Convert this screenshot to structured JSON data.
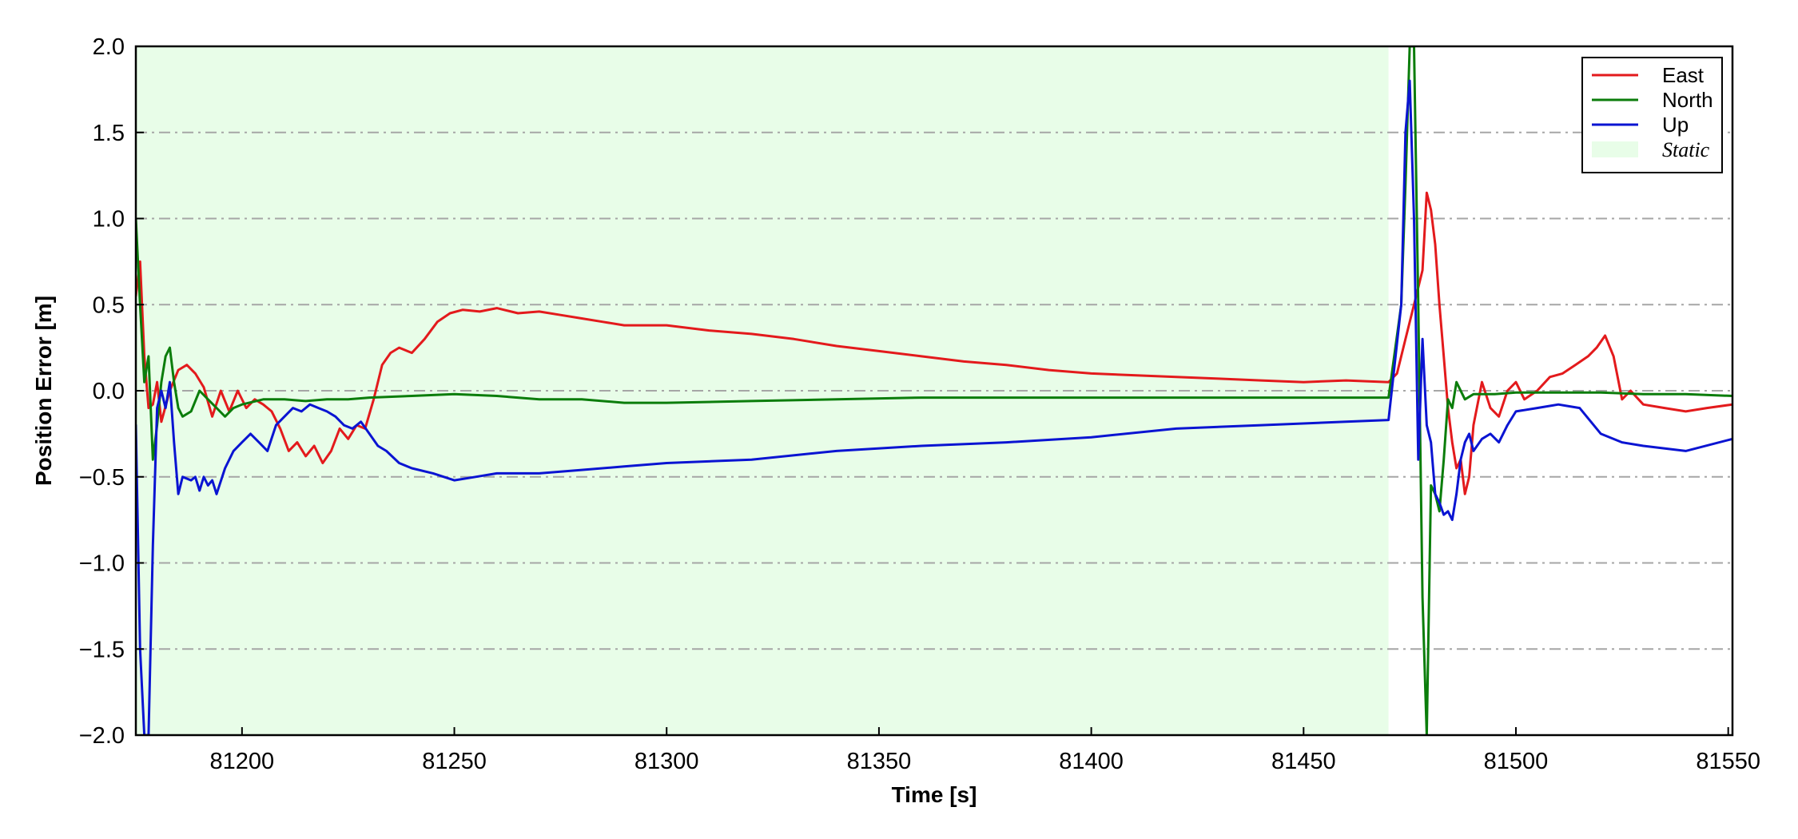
{
  "chart_data": {
    "type": "line",
    "title": "",
    "xlabel": "Time [s]",
    "ylabel": "Position Error [m]",
    "xlim": [
      81175,
      81551
    ],
    "ylim": [
      -2.0,
      2.0
    ],
    "xticks": [
      81200,
      81250,
      81300,
      81350,
      81400,
      81450,
      81500,
      81550
    ],
    "xtick_labels": [
      "81200",
      "81250",
      "81300",
      "81350",
      "81400",
      "81450",
      "81500",
      "81550"
    ],
    "yticks": [
      -2.0,
      -1.5,
      -1.0,
      -0.5,
      0.0,
      0.5,
      1.0,
      1.5,
      2.0
    ],
    "ytick_labels": [
      "−2.0",
      "−1.5",
      "−1.0",
      "−0.5",
      "0.0",
      "0.5",
      "1.0",
      "1.5",
      "2.0"
    ],
    "grid": {
      "axis": "y",
      "style": "dash-dot",
      "color": "#a6a6a6"
    },
    "legend_position": "top-right",
    "shaded_region": {
      "name": "Static",
      "x_start": 81175,
      "x_end": 81470,
      "color": "#e8fde8"
    },
    "series": [
      {
        "name": "East",
        "color": "#e31a1c",
        "x": [
          81175,
          81176,
          81177,
          81178,
          81179,
          81180,
          81181,
          81183,
          81185,
          81187,
          81189,
          81191,
          81193,
          81195,
          81197,
          81199,
          81201,
          81203,
          81205,
          81207,
          81209,
          81211,
          81213,
          81215,
          81217,
          81219,
          81221,
          81223,
          81225,
          81227,
          81229,
          81231,
          81233,
          81235,
          81237,
          81240,
          81243,
          81246,
          81249,
          81252,
          81256,
          81260,
          81265,
          81270,
          81275,
          81280,
          81285,
          81290,
          81300,
          81310,
          81320,
          81330,
          81340,
          81350,
          81360,
          81370,
          81380,
          81390,
          81400,
          81410,
          81420,
          81430,
          81440,
          81450,
          81460,
          81470,
          81472,
          81474,
          81476,
          81478,
          81479,
          81480,
          81481,
          81482,
          81483,
          81484,
          81485,
          81486,
          81487,
          81488,
          81489,
          81490,
          81492,
          81494,
          81496,
          81498,
          81500,
          81502,
          81505,
          81508,
          81511,
          81514,
          81517,
          81519,
          81521,
          81523,
          81525,
          81527,
          81530,
          81535,
          81540,
          81545,
          81551
        ],
        "values": [
          0.55,
          0.75,
          0.2,
          -0.1,
          -0.08,
          0.05,
          -0.18,
          0.0,
          0.12,
          0.15,
          0.1,
          0.02,
          -0.15,
          0.0,
          -0.12,
          0.0,
          -0.1,
          -0.05,
          -0.08,
          -0.12,
          -0.22,
          -0.35,
          -0.3,
          -0.38,
          -0.32,
          -0.42,
          -0.35,
          -0.22,
          -0.28,
          -0.2,
          -0.22,
          -0.05,
          0.15,
          0.22,
          0.25,
          0.22,
          0.3,
          0.4,
          0.45,
          0.47,
          0.46,
          0.48,
          0.45,
          0.46,
          0.44,
          0.42,
          0.4,
          0.38,
          0.38,
          0.35,
          0.33,
          0.3,
          0.26,
          0.23,
          0.2,
          0.17,
          0.15,
          0.12,
          0.1,
          0.09,
          0.08,
          0.07,
          0.06,
          0.05,
          0.06,
          0.05,
          0.1,
          0.3,
          0.5,
          0.7,
          1.15,
          1.05,
          0.85,
          0.5,
          0.2,
          -0.1,
          -0.3,
          -0.45,
          -0.4,
          -0.6,
          -0.5,
          -0.2,
          0.05,
          -0.1,
          -0.15,
          0.0,
          0.05,
          -0.05,
          0.0,
          0.08,
          0.1,
          0.15,
          0.2,
          0.25,
          0.32,
          0.2,
          -0.05,
          0.0,
          -0.08,
          -0.1,
          -0.12,
          -0.1,
          -0.08
        ]
      },
      {
        "name": "North",
        "color": "#0b7d0b",
        "x": [
          81175,
          81176,
          81177,
          81178,
          81179,
          81180,
          81181,
          81182,
          81183,
          81184,
          81185,
          81186,
          81188,
          81190,
          81192,
          81194,
          81196,
          81198,
          81200,
          81205,
          81210,
          81215,
          81220,
          81225,
          81230,
          81240,
          81250,
          81260,
          81270,
          81280,
          81290,
          81300,
          81320,
          81340,
          81360,
          81380,
          81400,
          81420,
          81440,
          81460,
          81470,
          81473,
          81474,
          81475,
          81476,
          81477,
          81478,
          81479,
          81480,
          81481,
          81482,
          81483,
          81484,
          81485,
          81486,
          81488,
          81490,
          81495,
          81500,
          81510,
          81520,
          81530,
          81540,
          81551
        ],
        "values": [
          1.0,
          0.5,
          0.05,
          0.2,
          -0.4,
          -0.2,
          0.05,
          0.2,
          0.25,
          0.05,
          -0.1,
          -0.15,
          -0.12,
          0.0,
          -0.05,
          -0.1,
          -0.15,
          -0.1,
          -0.08,
          -0.05,
          -0.05,
          -0.06,
          -0.05,
          -0.05,
          -0.04,
          -0.03,
          -0.02,
          -0.03,
          -0.05,
          -0.05,
          -0.07,
          -0.07,
          -0.06,
          -0.05,
          -0.04,
          -0.04,
          -0.04,
          -0.04,
          -0.04,
          -0.04,
          -0.04,
          0.5,
          1.2,
          2.0,
          2.0,
          0.5,
          -1.2,
          -2.0,
          -0.55,
          -0.6,
          -0.7,
          -0.4,
          -0.05,
          -0.1,
          0.05,
          -0.05,
          -0.02,
          -0.02,
          -0.01,
          -0.01,
          -0.01,
          -0.02,
          -0.02,
          -0.03
        ]
      },
      {
        "name": "Up",
        "color": "#0a14d2",
        "x": [
          81175,
          81176,
          81177,
          81178,
          81179,
          81180,
          81181,
          81182,
          81183,
          81184,
          81185,
          81186,
          81188,
          81189,
          81190,
          81191,
          81192,
          81193,
          81194,
          81196,
          81198,
          81200,
          81202,
          81204,
          81206,
          81208,
          81210,
          81212,
          81214,
          81216,
          81218,
          81220,
          81222,
          81224,
          81226,
          81228,
          81230,
          81232,
          81234,
          81237,
          81240,
          81245,
          81250,
          81255,
          81260,
          81270,
          81280,
          81290,
          81300,
          81320,
          81340,
          81360,
          81380,
          81400,
          81420,
          81440,
          81460,
          81470,
          81473,
          81474,
          81475,
          81476,
          81477,
          81478,
          81479,
          81480,
          81481,
          81482,
          81483,
          81484,
          81485,
          81486,
          81487,
          81488,
          81489,
          81490,
          81492,
          81494,
          81496,
          81498,
          81500,
          81505,
          81510,
          81515,
          81520,
          81525,
          81530,
          81540,
          81551
        ],
        "values": [
          -0.2,
          -1.5,
          -2.0,
          -2.0,
          -0.9,
          -0.1,
          0.0,
          -0.1,
          0.05,
          -0.3,
          -0.6,
          -0.5,
          -0.52,
          -0.5,
          -0.58,
          -0.5,
          -0.55,
          -0.52,
          -0.6,
          -0.45,
          -0.35,
          -0.3,
          -0.25,
          -0.3,
          -0.35,
          -0.2,
          -0.15,
          -0.1,
          -0.12,
          -0.08,
          -0.1,
          -0.12,
          -0.15,
          -0.2,
          -0.22,
          -0.18,
          -0.25,
          -0.32,
          -0.35,
          -0.42,
          -0.45,
          -0.48,
          -0.52,
          -0.5,
          -0.48,
          -0.48,
          -0.46,
          -0.44,
          -0.42,
          -0.4,
          -0.35,
          -0.32,
          -0.3,
          -0.27,
          -0.22,
          -0.2,
          -0.18,
          -0.17,
          0.5,
          1.5,
          1.8,
          1.0,
          -0.4,
          0.3,
          -0.2,
          -0.3,
          -0.6,
          -0.65,
          -0.72,
          -0.7,
          -0.75,
          -0.6,
          -0.4,
          -0.3,
          -0.25,
          -0.35,
          -0.28,
          -0.25,
          -0.3,
          -0.2,
          -0.12,
          -0.1,
          -0.08,
          -0.1,
          -0.25,
          -0.3,
          -0.32,
          -0.35,
          -0.28
        ]
      }
    ]
  }
}
